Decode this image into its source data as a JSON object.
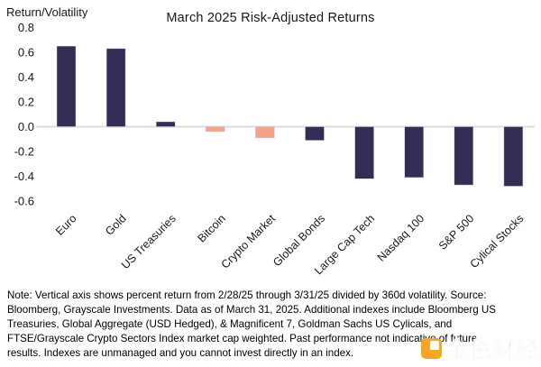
{
  "chart_data": {
    "type": "bar",
    "title": "March 2025 Risk-Adjusted Returns",
    "ylabel": "Return/Volatility",
    "xlabel": "",
    "categories": [
      "Euro",
      "Gold",
      "US Treasuries",
      "Bitcoin",
      "Crypto Market",
      "Global Bonds",
      "Large Cap Tech",
      "Nasdaq 100",
      "S&P 500",
      "Cylical Stocks"
    ],
    "values": [
      0.65,
      0.63,
      0.04,
      -0.04,
      -0.09,
      -0.11,
      -0.42,
      -0.41,
      -0.47,
      -0.48
    ],
    "bar_colors": [
      "#332C54",
      "#332C54",
      "#332C54",
      "#F5A289",
      "#F5A289",
      "#332C54",
      "#332C54",
      "#332C54",
      "#332C54",
      "#332C54"
    ],
    "yticks": [
      0.8,
      0.6,
      0.4,
      0.2,
      0.0,
      -0.2,
      -0.4,
      -0.6
    ],
    "ylim": [
      -0.6,
      0.8
    ],
    "grid": false,
    "legend": "none",
    "zero_line_color": "#DCDCDC",
    "colors": {
      "dark_bar": "#332C54",
      "salmon_bar": "#F5A289",
      "text": "#17151F"
    }
  },
  "footnote": {
    "lines": [
      "Note: Vertical axis shows percent return from 2/28/25 through 3/31/25 divided by 360d volatility. Source:",
      "Bloomberg, Grayscale Investments. Data as of March 31, 2025. Additional indexes include Bloomberg US",
      "Treasuries, Global Aggregate (USD Hedged), & Magnificent 7, Goldman Sachs US Cylicals, and",
      "FTSE/Grayscale Crypto Sectors Index market cap weighted. Past performance not indicative of future",
      "results. Indexes are unmanaged and you cannot invest directly in an index."
    ]
  },
  "watermark": {
    "text": "金色财经",
    "icon": "jinse-logo-icon",
    "icon_color": "#F5A623"
  }
}
